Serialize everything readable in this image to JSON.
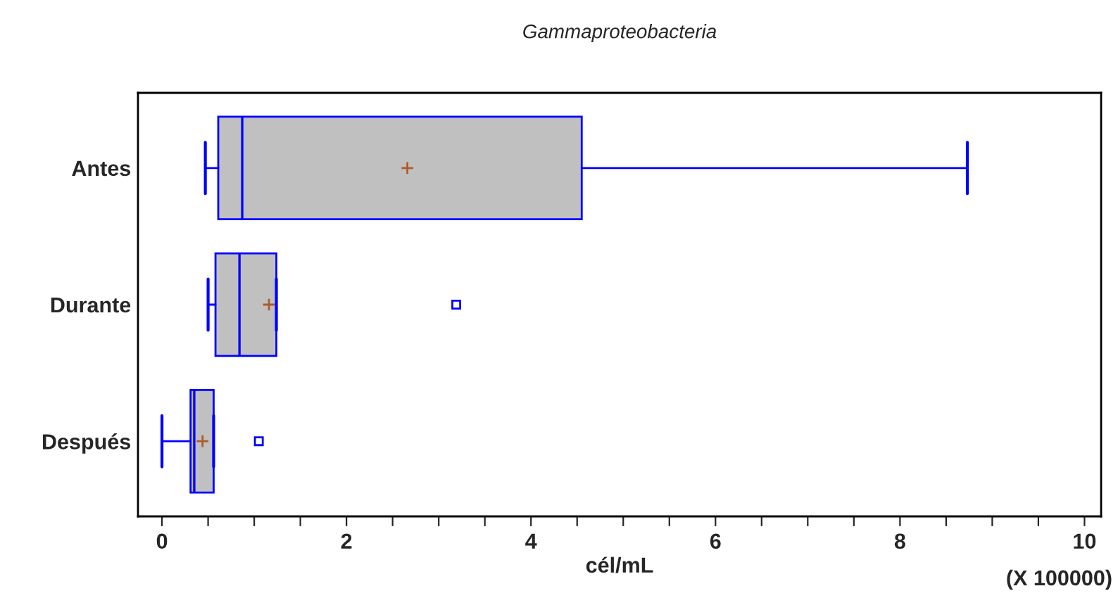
{
  "chart_data": {
    "type": "box",
    "orientation": "horizontal",
    "title": "Gammaproteobacteria",
    "xlabel": "cél/mL",
    "categories": [
      "Antes",
      "Durante",
      "Después"
    ],
    "boxes": [
      {
        "low": 0.47,
        "q1": 0.61,
        "median": 0.87,
        "q3": 4.55,
        "high": 8.73,
        "mean": 2.66
      },
      {
        "low": 0.5,
        "q1": 0.58,
        "median": 0.84,
        "q3": 1.24,
        "high": 1.24,
        "mean": 1.16,
        "outliers": [
          3.19
        ]
      },
      {
        "low": 0.0,
        "q1": 0.31,
        "median": 0.35,
        "q3": 0.56,
        "high": 0.56,
        "mean": 0.44,
        "outliers": [
          1.05
        ]
      }
    ],
    "color": "#c0c0c0",
    "xlim": [
      -0.26,
      10.18
    ],
    "xticks": [
      0,
      {
        "value": 0.5,
        "label": null
      },
      {
        "value": 1,
        "label": null
      },
      {
        "value": 1.5,
        "label": null
      },
      2,
      {
        "value": 2.5,
        "label": null
      },
      {
        "value": 3,
        "label": null
      },
      {
        "value": 3.5,
        "label": null
      },
      4,
      {
        "value": 4.5,
        "label": null
      },
      {
        "value": 5,
        "label": null
      },
      {
        "value": 5.5,
        "label": null
      },
      6,
      {
        "value": 6.5,
        "label": null
      },
      {
        "value": 7,
        "label": null
      },
      {
        "value": 7.5,
        "label": null
      },
      8,
      {
        "value": 8.5,
        "label": null
      },
      {
        "value": 9,
        "label": null
      },
      {
        "value": 9.5,
        "label": null
      },
      10
    ],
    "grid": false,
    "annotations": [
      "(X 100000)"
    ]
  }
}
